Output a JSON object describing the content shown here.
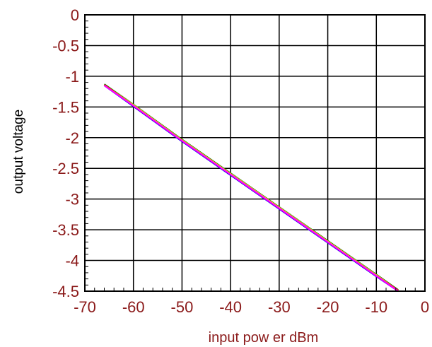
{
  "chart_data": {
    "type": "line",
    "title": "",
    "xlabel": "input pow er dBm",
    "ylabel": "output voltage",
    "xlim": [
      -70,
      0
    ],
    "ylim": [
      -4.5,
      0
    ],
    "x_ticks": [
      -70,
      -60,
      -50,
      -40,
      -30,
      -20,
      -10,
      0
    ],
    "y_ticks": [
      0,
      -0.5,
      -1,
      -1.5,
      -2,
      -2.5,
      -3,
      -3.5,
      -4,
      -4.5
    ],
    "x_tick_labels": [
      "-70",
      "-60",
      "-50",
      "-40",
      "-30",
      "-20",
      "-10",
      "0"
    ],
    "y_tick_labels": [
      "0",
      "-0.5",
      "-1",
      "-1.5",
      "-2",
      "-2.5",
      "-3",
      "-3.5",
      "-4",
      "-4.5"
    ],
    "grid": true,
    "legend": "none",
    "series": [
      {
        "color": "#006400",
        "x": [
          -66,
          -60,
          -50,
          -40,
          -30,
          -20,
          -10,
          -5.5
        ],
        "y": [
          -1.13,
          -1.46,
          -2.03,
          -2.58,
          -3.13,
          -3.68,
          -4.23,
          -4.48
        ]
      },
      {
        "color": "#ffa500",
        "x": [
          -66,
          -60,
          -50,
          -40,
          -30,
          -20,
          -10,
          -5.5
        ],
        "y": [
          -1.14,
          -1.47,
          -2.04,
          -2.59,
          -3.14,
          -3.69,
          -4.24,
          -4.49
        ]
      },
      {
        "color": "#ffff00",
        "x": [
          -66,
          -60,
          -50,
          -40,
          -30,
          -20,
          -10,
          -5.5
        ],
        "y": [
          -1.14,
          -1.47,
          -2.04,
          -2.59,
          -3.14,
          -3.69,
          -4.24,
          -4.49
        ]
      },
      {
        "color": "#0000ff",
        "x": [
          -66,
          -60,
          -50,
          -40,
          -30,
          -20,
          -10,
          -5.5
        ],
        "y": [
          -1.15,
          -1.49,
          -2.06,
          -2.61,
          -3.16,
          -3.71,
          -4.26,
          -4.5
        ]
      },
      {
        "color": "#ff0000",
        "x": [
          -66,
          -60,
          -50,
          -40,
          -30,
          -20,
          -10,
          -5.5
        ],
        "y": [
          -1.14,
          -1.48,
          -2.05,
          -2.6,
          -3.15,
          -3.7,
          -4.25,
          -4.49
        ]
      },
      {
        "color": "#ff00ff",
        "x": [
          -66,
          -60,
          -50,
          -40,
          -30,
          -20,
          -10,
          -5.5
        ],
        "y": [
          -1.15,
          -1.48,
          -2.05,
          -2.6,
          -3.15,
          -3.7,
          -4.25,
          -4.5
        ]
      }
    ]
  }
}
